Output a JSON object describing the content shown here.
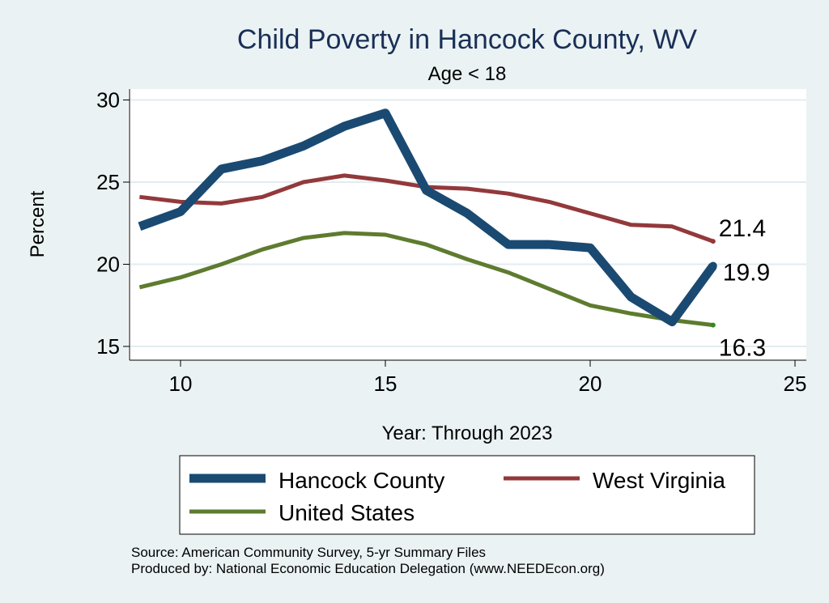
{
  "chart_data": {
    "type": "line",
    "title": "Child Poverty in Hancock County, WV",
    "subtitle": "Age < 18",
    "xlabel": "Year: Through 2023",
    "ylabel": "Percent",
    "xlim": [
      9,
      25
    ],
    "ylim": [
      14.5,
      30.5
    ],
    "xticks": [
      "10",
      "15",
      "20",
      "25"
    ],
    "yticks": [
      "15",
      "20",
      "25",
      "30"
    ],
    "grid": true,
    "legend_position": "bottom",
    "x": [
      9,
      10,
      11,
      12,
      13,
      14,
      15,
      16,
      17,
      18,
      19,
      20,
      21,
      22,
      23
    ],
    "series": [
      {
        "name": "Hancock County",
        "color": "#1a4a72",
        "values": [
          22.3,
          23.2,
          25.8,
          26.3,
          27.2,
          28.4,
          29.2,
          24.5,
          23.1,
          21.2,
          21.2,
          21.0,
          18.0,
          16.5,
          19.9
        ],
        "end_label": "19.9"
      },
      {
        "name": "West Virginia",
        "color": "#93393b",
        "values": [
          24.1,
          23.8,
          23.7,
          24.1,
          25.0,
          25.4,
          25.1,
          24.7,
          24.6,
          24.3,
          23.8,
          23.1,
          22.4,
          22.3,
          21.4
        ],
        "end_label": "21.4"
      },
      {
        "name": "United States",
        "color": "#5e7b2f",
        "values": [
          18.6,
          19.2,
          20.0,
          20.9,
          21.6,
          21.9,
          21.8,
          21.2,
          20.3,
          19.5,
          18.5,
          17.5,
          17.0,
          16.6,
          16.3
        ],
        "end_label": "16.3"
      }
    ],
    "source_lines": [
      "Source: American Community Survey, 5-yr Summary Files",
      "Produced by: National Economic Education Delegation (www.NEEDEcon.org)"
    ]
  }
}
